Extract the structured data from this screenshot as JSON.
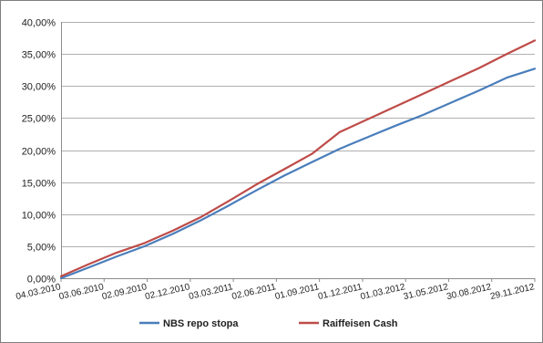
{
  "chart_data": {
    "type": "line",
    "grid": "horizontal",
    "legend_position": "bottom",
    "ylim": [
      0,
      40
    ],
    "y_tick_labels": [
      "0,00%",
      "5,00%",
      "10,00%",
      "15,00%",
      "20,00%",
      "25,00%",
      "30,00%",
      "35,00%",
      "40,00%"
    ],
    "y_tick_values": [
      0,
      5,
      10,
      15,
      20,
      25,
      30,
      35,
      40
    ],
    "x_tick_labels": [
      "04.03.2010",
      "03.06.2010",
      "02.09.2010",
      "02.12.2010",
      "03.03.2011",
      "02.06.2011",
      "01.09.2011",
      "01.12.2011",
      "01.03.2012",
      "31.05.2012",
      "30.08.2012",
      "29.11.2012"
    ],
    "series": [
      {
        "name": "NBS repo stopa",
        "color": "#4a7ebb",
        "values": [
          0.0,
          1.7,
          3.4,
          5.0,
          6.9,
          9.0,
          11.3,
          13.7,
          16.0,
          18.1,
          20.2,
          22.0,
          23.8,
          25.5,
          27.4,
          29.3,
          31.3,
          32.7
        ]
      },
      {
        "name": "Raiffeisen Cash",
        "color": "#be4b48",
        "values": [
          0.3,
          2.2,
          4.0,
          5.5,
          7.4,
          9.5,
          12.0,
          14.6,
          17.0,
          19.4,
          22.8,
          24.8,
          26.8,
          28.8,
          30.8,
          32.8,
          35.0,
          37.1
        ]
      }
    ]
  }
}
